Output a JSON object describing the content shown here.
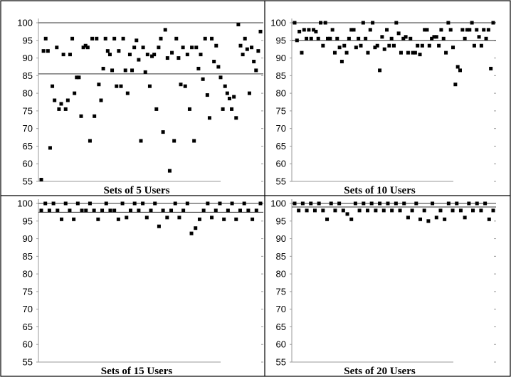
{
  "figure": {
    "background": "#ffffff",
    "point_color": "#000000",
    "axis_color": "#9a9a9a"
  },
  "chart_data": [
    {
      "type": "scatter",
      "title": "Sets of 5 Users",
      "xlabel": "",
      "ylabel": "",
      "ylim": [
        55,
        100
      ],
      "yticks": [
        "100",
        "95",
        "90",
        "85",
        "80",
        "75",
        "70",
        "65",
        "60",
        "55"
      ],
      "grid": false,
      "reference_lines": [
        85.5,
        100
      ],
      "points": [
        {
          "x": 1,
          "y": 55.5
        },
        {
          "x": 2,
          "y": 92
        },
        {
          "x": 3,
          "y": 95.5
        },
        {
          "x": 4,
          "y": 92
        },
        {
          "x": 5,
          "y": 64.5
        },
        {
          "x": 6,
          "y": 82
        },
        {
          "x": 7,
          "y": 78
        },
        {
          "x": 8,
          "y": 93
        },
        {
          "x": 9,
          "y": 75.5
        },
        {
          "x": 10,
          "y": 77
        },
        {
          "x": 11,
          "y": 91
        },
        {
          "x": 12,
          "y": 75.5
        },
        {
          "x": 13,
          "y": 78
        },
        {
          "x": 14,
          "y": 91
        },
        {
          "x": 15,
          "y": 95.5
        },
        {
          "x": 16,
          "y": 80
        },
        {
          "x": 17,
          "y": 84.5
        },
        {
          "x": 18,
          "y": 84.5
        },
        {
          "x": 19,
          "y": 73.5
        },
        {
          "x": 20,
          "y": 93
        },
        {
          "x": 21,
          "y": 93.5
        },
        {
          "x": 22,
          "y": 93
        },
        {
          "x": 23,
          "y": 66.5
        },
        {
          "x": 24,
          "y": 95.5
        },
        {
          "x": 25,
          "y": 73.5
        },
        {
          "x": 26,
          "y": 95.5
        },
        {
          "x": 27,
          "y": 82.5
        },
        {
          "x": 28,
          "y": 78
        },
        {
          "x": 29,
          "y": 87
        },
        {
          "x": 30,
          "y": 95.5
        },
        {
          "x": 31,
          "y": 92
        },
        {
          "x": 32,
          "y": 91
        },
        {
          "x": 33,
          "y": 86.5
        },
        {
          "x": 34,
          "y": 95.5
        },
        {
          "x": 35,
          "y": 82
        },
        {
          "x": 36,
          "y": 92
        },
        {
          "x": 37,
          "y": 82
        },
        {
          "x": 38,
          "y": 95.5
        },
        {
          "x": 39,
          "y": 86.5
        },
        {
          "x": 40,
          "y": 80
        },
        {
          "x": 41,
          "y": 91
        },
        {
          "x": 42,
          "y": 86.5
        },
        {
          "x": 43,
          "y": 93
        },
        {
          "x": 44,
          "y": 95
        },
        {
          "x": 45,
          "y": 89.5
        },
        {
          "x": 46,
          "y": 66.5
        },
        {
          "x": 47,
          "y": 93
        },
        {
          "x": 48,
          "y": 86
        },
        {
          "x": 49,
          "y": 91
        },
        {
          "x": 50,
          "y": 82
        },
        {
          "x": 51,
          "y": 90.5
        },
        {
          "x": 52,
          "y": 91
        },
        {
          "x": 53,
          "y": 75.5
        },
        {
          "x": 54,
          "y": 93
        },
        {
          "x": 55,
          "y": 95.5
        },
        {
          "x": 56,
          "y": 69
        },
        {
          "x": 57,
          "y": 98
        },
        {
          "x": 58,
          "y": 90
        },
        {
          "x": 59,
          "y": 58
        },
        {
          "x": 60,
          "y": 91.5
        },
        {
          "x": 61,
          "y": 66.5
        },
        {
          "x": 62,
          "y": 95.5
        },
        {
          "x": 63,
          "y": 90
        },
        {
          "x": 64,
          "y": 82.5
        },
        {
          "x": 65,
          "y": 93
        },
        {
          "x": 66,
          "y": 82
        },
        {
          "x": 67,
          "y": 91
        },
        {
          "x": 68,
          "y": 75.5
        },
        {
          "x": 69,
          "y": 93
        },
        {
          "x": 70,
          "y": 66.5
        },
        {
          "x": 71,
          "y": 93
        },
        {
          "x": 72,
          "y": 87
        },
        {
          "x": 73,
          "y": 91
        },
        {
          "x": 74,
          "y": 84
        },
        {
          "x": 75,
          "y": 95.5
        },
        {
          "x": 76,
          "y": 79.5
        },
        {
          "x": 77,
          "y": 73
        },
        {
          "x": 78,
          "y": 95.5
        },
        {
          "x": 79,
          "y": 89
        },
        {
          "x": 80,
          "y": 93.5
        },
        {
          "x": 81,
          "y": 87.5
        },
        {
          "x": 82,
          "y": 84.5
        },
        {
          "x": 83,
          "y": 75.5
        },
        {
          "x": 84,
          "y": 82
        },
        {
          "x": 85,
          "y": 80
        },
        {
          "x": 86,
          "y": 78.5
        },
        {
          "x": 87,
          "y": 75.5
        },
        {
          "x": 88,
          "y": 79
        },
        {
          "x": 89,
          "y": 73
        },
        {
          "x": 90,
          "y": 99.5
        },
        {
          "x": 91,
          "y": 93.5
        },
        {
          "x": 92,
          "y": 91
        },
        {
          "x": 93,
          "y": 95.5
        },
        {
          "x": 94,
          "y": 92.5
        },
        {
          "x": 95,
          "y": 80
        },
        {
          "x": 96,
          "y": 93
        },
        {
          "x": 97,
          "y": 89
        },
        {
          "x": 98,
          "y": 86.5
        },
        {
          "x": 99,
          "y": 92
        },
        {
          "x": 100,
          "y": 97.5
        }
      ]
    },
    {
      "type": "scatter",
      "title": "Sets of 10 Users",
      "xlabel": "",
      "ylabel": "",
      "ylim": [
        55,
        100
      ],
      "yticks": [
        "100",
        "95",
        "90",
        "85",
        "80",
        "75",
        "70",
        "65",
        "60",
        "55"
      ],
      "grid": false,
      "reference_lines": [
        95,
        100
      ],
      "points": [
        {
          "x": 1,
          "y": 100
        },
        {
          "x": 2,
          "y": 95
        },
        {
          "x": 3,
          "y": 97.5
        },
        {
          "x": 4,
          "y": 91.5
        },
        {
          "x": 5,
          "y": 98
        },
        {
          "x": 6,
          "y": 95.5
        },
        {
          "x": 7,
          "y": 98
        },
        {
          "x": 8,
          "y": 95.5
        },
        {
          "x": 9,
          "y": 98
        },
        {
          "x": 10,
          "y": 97.5
        },
        {
          "x": 11,
          "y": 95.5
        },
        {
          "x": 12,
          "y": 100
        },
        {
          "x": 13,
          "y": 93.5
        },
        {
          "x": 14,
          "y": 100
        },
        {
          "x": 15,
          "y": 95.5
        },
        {
          "x": 16,
          "y": 95.5
        },
        {
          "x": 17,
          "y": 98
        },
        {
          "x": 18,
          "y": 91.5
        },
        {
          "x": 19,
          "y": 95.5
        },
        {
          "x": 20,
          "y": 93
        },
        {
          "x": 21,
          "y": 89
        },
        {
          "x": 22,
          "y": 93.5
        },
        {
          "x": 23,
          "y": 91.5
        },
        {
          "x": 24,
          "y": 95.5
        },
        {
          "x": 25,
          "y": 98
        },
        {
          "x": 26,
          "y": 98
        },
        {
          "x": 27,
          "y": 93
        },
        {
          "x": 28,
          "y": 95.5
        },
        {
          "x": 29,
          "y": 93.5
        },
        {
          "x": 30,
          "y": 100
        },
        {
          "x": 31,
          "y": 95.5
        },
        {
          "x": 32,
          "y": 91.5
        },
        {
          "x": 33,
          "y": 98
        },
        {
          "x": 34,
          "y": 100
        },
        {
          "x": 35,
          "y": 93
        },
        {
          "x": 36,
          "y": 93.5
        },
        {
          "x": 37,
          "y": 86.5
        },
        {
          "x": 38,
          "y": 96
        },
        {
          "x": 39,
          "y": 92.5
        },
        {
          "x": 40,
          "y": 98
        },
        {
          "x": 41,
          "y": 93.5
        },
        {
          "x": 42,
          "y": 95.5
        },
        {
          "x": 43,
          "y": 93.5
        },
        {
          "x": 44,
          "y": 100
        },
        {
          "x": 45,
          "y": 97
        },
        {
          "x": 46,
          "y": 91.5
        },
        {
          "x": 47,
          "y": 95.5
        },
        {
          "x": 48,
          "y": 96
        },
        {
          "x": 49,
          "y": 91.5
        },
        {
          "x": 50,
          "y": 95.5
        },
        {
          "x": 51,
          "y": 91.5
        },
        {
          "x": 52,
          "y": 91.5
        },
        {
          "x": 53,
          "y": 93.5
        },
        {
          "x": 54,
          "y": 91
        },
        {
          "x": 55,
          "y": 93.5
        },
        {
          "x": 56,
          "y": 98
        },
        {
          "x": 57,
          "y": 98
        },
        {
          "x": 58,
          "y": 93.5
        },
        {
          "x": 59,
          "y": 95.5
        },
        {
          "x": 60,
          "y": 96
        },
        {
          "x": 61,
          "y": 96
        },
        {
          "x": 62,
          "y": 93.5
        },
        {
          "x": 63,
          "y": 98
        },
        {
          "x": 64,
          "y": 95.5
        },
        {
          "x": 65,
          "y": 91.5
        },
        {
          "x": 66,
          "y": 100
        },
        {
          "x": 67,
          "y": 98
        },
        {
          "x": 68,
          "y": 93
        },
        {
          "x": 69,
          "y": 82.5
        },
        {
          "x": 70,
          "y": 87.5
        },
        {
          "x": 71,
          "y": 86.5
        },
        {
          "x": 72,
          "y": 98
        },
        {
          "x": 73,
          "y": 95.5
        },
        {
          "x": 74,
          "y": 98
        },
        {
          "x": 75,
          "y": 98
        },
        {
          "x": 76,
          "y": 100
        },
        {
          "x": 77,
          "y": 93.5
        },
        {
          "x": 78,
          "y": 98
        },
        {
          "x": 79,
          "y": 96
        },
        {
          "x": 80,
          "y": 93.5
        },
        {
          "x": 81,
          "y": 98
        },
        {
          "x": 82,
          "y": 95.5
        },
        {
          "x": 83,
          "y": 98
        },
        {
          "x": 84,
          "y": 87
        },
        {
          "x": 85,
          "y": 100
        }
      ]
    },
    {
      "type": "scatter",
      "title": "Sets of 15 Users",
      "xlabel": "",
      "ylabel": "",
      "ylim": [
        55,
        100
      ],
      "yticks": [
        "100",
        "95",
        "90",
        "85",
        "80",
        "75",
        "70",
        "65",
        "60",
        "55"
      ],
      "grid": false,
      "reference_lines": [
        97.5,
        100
      ],
      "points": [
        {
          "x": 1,
          "y": 98
        },
        {
          "x": 2,
          "y": 100
        },
        {
          "x": 3,
          "y": 98
        },
        {
          "x": 4,
          "y": 100
        },
        {
          "x": 5,
          "y": 98
        },
        {
          "x": 6,
          "y": 95.5
        },
        {
          "x": 7,
          "y": 100
        },
        {
          "x": 8,
          "y": 98
        },
        {
          "x": 9,
          "y": 95.5
        },
        {
          "x": 10,
          "y": 100
        },
        {
          "x": 11,
          "y": 98
        },
        {
          "x": 12,
          "y": 98
        },
        {
          "x": 13,
          "y": 100
        },
        {
          "x": 14,
          "y": 98
        },
        {
          "x": 15,
          "y": 95.5
        },
        {
          "x": 16,
          "y": 98
        },
        {
          "x": 17,
          "y": 100
        },
        {
          "x": 18,
          "y": 98
        },
        {
          "x": 19,
          "y": 98
        },
        {
          "x": 20,
          "y": 95.5
        },
        {
          "x": 21,
          "y": 100
        },
        {
          "x": 22,
          "y": 96
        },
        {
          "x": 23,
          "y": 98
        },
        {
          "x": 24,
          "y": 100
        },
        {
          "x": 25,
          "y": 98
        },
        {
          "x": 26,
          "y": 100
        },
        {
          "x": 27,
          "y": 96
        },
        {
          "x": 28,
          "y": 98
        },
        {
          "x": 29,
          "y": 100
        },
        {
          "x": 30,
          "y": 93.5
        },
        {
          "x": 31,
          "y": 98
        },
        {
          "x": 32,
          "y": 96
        },
        {
          "x": 33,
          "y": 98
        },
        {
          "x": 34,
          "y": 100
        },
        {
          "x": 35,
          "y": 96
        },
        {
          "x": 36,
          "y": 98
        },
        {
          "x": 37,
          "y": 100
        },
        {
          "x": 38,
          "y": 91.5
        },
        {
          "x": 39,
          "y": 93
        },
        {
          "x": 40,
          "y": 95.5
        },
        {
          "x": 41,
          "y": 98
        },
        {
          "x": 42,
          "y": 100
        },
        {
          "x": 43,
          "y": 96
        },
        {
          "x": 44,
          "y": 98
        },
        {
          "x": 45,
          "y": 100
        },
        {
          "x": 46,
          "y": 95.5
        },
        {
          "x": 47,
          "y": 98
        },
        {
          "x": 48,
          "y": 100
        },
        {
          "x": 49,
          "y": 95.5
        },
        {
          "x": 50,
          "y": 98
        },
        {
          "x": 51,
          "y": 100
        },
        {
          "x": 52,
          "y": 98
        },
        {
          "x": 53,
          "y": 95.5
        },
        {
          "x": 54,
          "y": 98
        },
        {
          "x": 55,
          "y": 100
        }
      ]
    },
    {
      "type": "scatter",
      "title": "Sets of 20 Users",
      "xlabel": "",
      "ylabel": "",
      "ylim": [
        55,
        100
      ],
      "yticks": [
        "100",
        "95",
        "90",
        "85",
        "80",
        "75",
        "70",
        "65",
        "60",
        "55"
      ],
      "grid": false,
      "reference_lines": [
        99,
        100
      ],
      "points": [
        {
          "x": 1,
          "y": 100
        },
        {
          "x": 2,
          "y": 98
        },
        {
          "x": 3,
          "y": 100
        },
        {
          "x": 4,
          "y": 98
        },
        {
          "x": 5,
          "y": 100
        },
        {
          "x": 6,
          "y": 98
        },
        {
          "x": 7,
          "y": 100
        },
        {
          "x": 8,
          "y": 98
        },
        {
          "x": 9,
          "y": 95.5
        },
        {
          "x": 10,
          "y": 100
        },
        {
          "x": 11,
          "y": 98
        },
        {
          "x": 12,
          "y": 100
        },
        {
          "x": 13,
          "y": 98
        },
        {
          "x": 14,
          "y": 97
        },
        {
          "x": 15,
          "y": 95.5
        },
        {
          "x": 16,
          "y": 100
        },
        {
          "x": 17,
          "y": 98
        },
        {
          "x": 18,
          "y": 100
        },
        {
          "x": 19,
          "y": 98
        },
        {
          "x": 20,
          "y": 100
        },
        {
          "x": 21,
          "y": 98
        },
        {
          "x": 22,
          "y": 100
        },
        {
          "x": 23,
          "y": 98
        },
        {
          "x": 24,
          "y": 100
        },
        {
          "x": 25,
          "y": 98
        },
        {
          "x": 26,
          "y": 100
        },
        {
          "x": 27,
          "y": 98
        },
        {
          "x": 28,
          "y": 100
        },
        {
          "x": 29,
          "y": 96
        },
        {
          "x": 30,
          "y": 98
        },
        {
          "x": 31,
          "y": 100
        },
        {
          "x": 32,
          "y": 95.5
        },
        {
          "x": 33,
          "y": 98
        },
        {
          "x": 34,
          "y": 95
        },
        {
          "x": 35,
          "y": 100
        },
        {
          "x": 36,
          "y": 96
        },
        {
          "x": 37,
          "y": 98
        },
        {
          "x": 38,
          "y": 95.5
        },
        {
          "x": 39,
          "y": 100
        },
        {
          "x": 40,
          "y": 98
        },
        {
          "x": 41,
          "y": 100
        },
        {
          "x": 42,
          "y": 98
        },
        {
          "x": 43,
          "y": 96
        },
        {
          "x": 44,
          "y": 100
        },
        {
          "x": 45,
          "y": 98
        },
        {
          "x": 46,
          "y": 100
        },
        {
          "x": 47,
          "y": 98
        },
        {
          "x": 48,
          "y": 100
        },
        {
          "x": 49,
          "y": 95.5
        },
        {
          "x": 50,
          "y": 98
        }
      ]
    }
  ]
}
